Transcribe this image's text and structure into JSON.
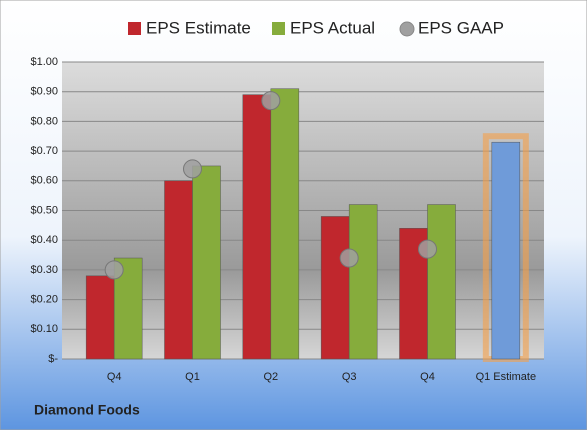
{
  "chart_data": {
    "type": "bar",
    "footer": "Diamond Foods",
    "categories": [
      "Q4",
      "Q1",
      "Q2",
      "Q3",
      "Q4",
      "Q1 Estimate"
    ],
    "series": [
      {
        "name": "EPS Estimate",
        "color": "#c0272d",
        "highlight_color": "#6f9bd9",
        "values": [
          0.28,
          0.6,
          0.89,
          0.48,
          0.44,
          0.73
        ]
      },
      {
        "name": "EPS Actual",
        "color": "#86ac3c",
        "values": [
          0.34,
          0.65,
          0.91,
          0.52,
          0.52,
          null
        ]
      },
      {
        "name": "EPS GAAP",
        "color": "#a0a0a0",
        "marker": "circle",
        "values": [
          0.3,
          0.64,
          0.87,
          0.34,
          0.37,
          null
        ]
      }
    ],
    "ylim": [
      0,
      1.0
    ],
    "yticks": [
      {
        "value": 0,
        "label": "$-"
      },
      {
        "value": 0.1,
        "label": "$0.10"
      },
      {
        "value": 0.2,
        "label": "$0.20"
      },
      {
        "value": 0.3,
        "label": "$0.30"
      },
      {
        "value": 0.4,
        "label": "$0.40"
      },
      {
        "value": 0.5,
        "label": "$0.50"
      },
      {
        "value": 0.6,
        "label": "$0.60"
      },
      {
        "value": 0.7,
        "label": "$0.70"
      },
      {
        "value": 0.8,
        "label": "$0.80"
      },
      {
        "value": 0.9,
        "label": "$0.90"
      },
      {
        "value": 1.0,
        "label": "$1.00"
      }
    ],
    "grid": true,
    "legend": "top"
  }
}
